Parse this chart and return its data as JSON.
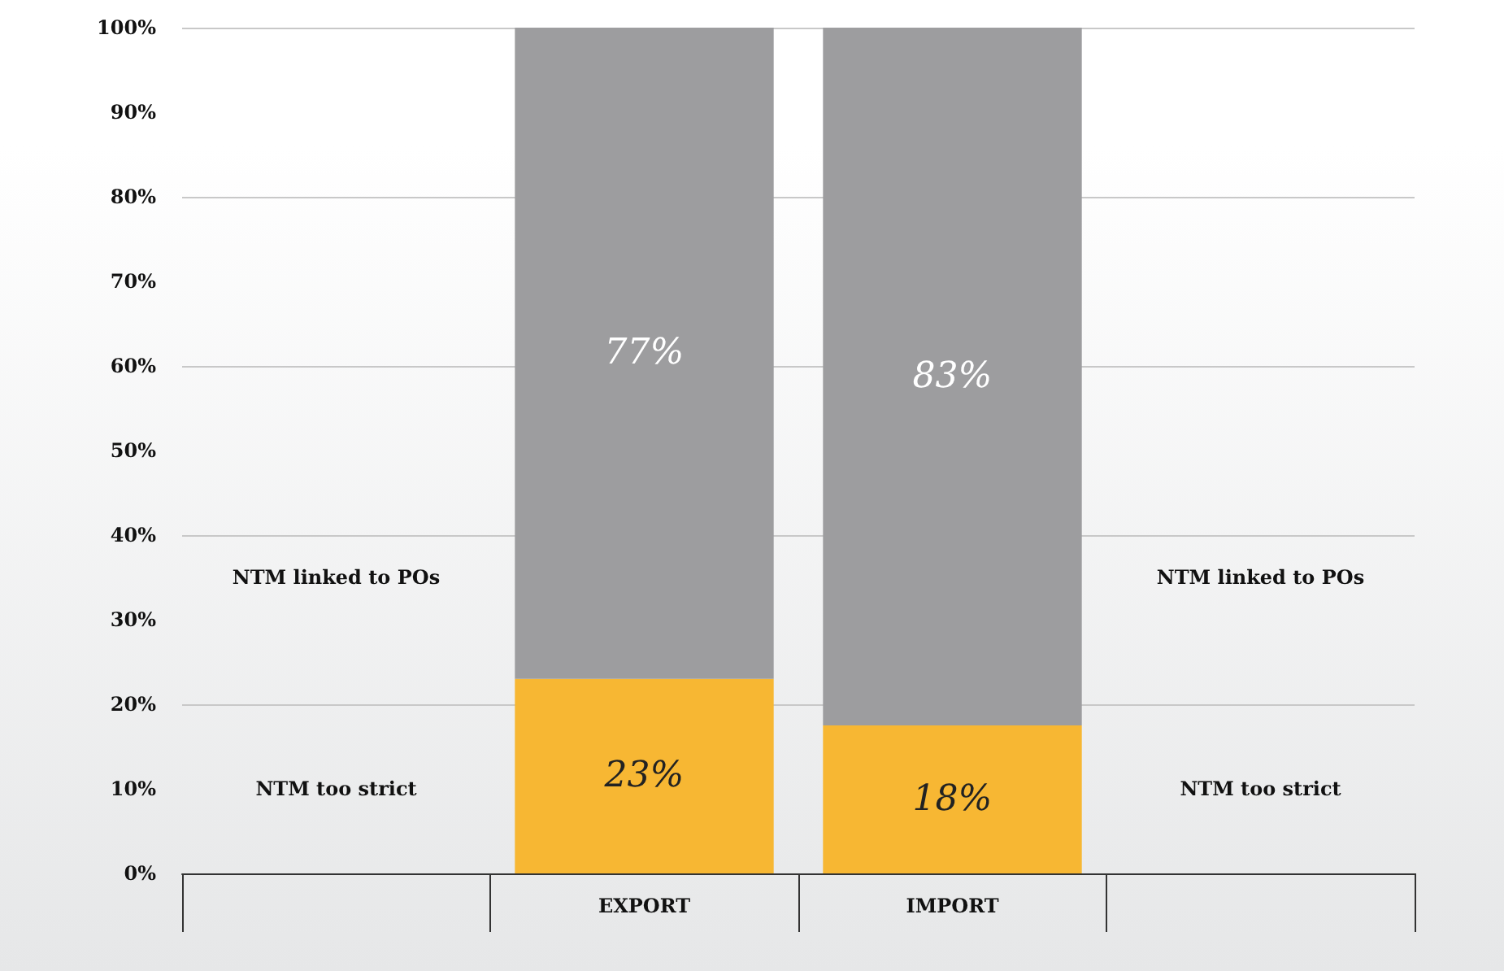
{
  "chart_data": {
    "type": "bar",
    "stacked": true,
    "categories": [
      null,
      "EXPORT",
      "IMPORT",
      null
    ],
    "series": [
      {
        "name": "NTM too strict",
        "color": "#f7b733",
        "values": [
          null,
          23,
          17.5,
          null
        ],
        "value_labels": [
          null,
          "23%",
          "18%",
          null
        ]
      },
      {
        "name": "NTM linked to POs",
        "color": "#9d9d9f",
        "values": [
          null,
          77,
          82.5,
          null
        ],
        "value_labels": [
          null,
          "77%",
          "83%",
          null
        ]
      }
    ],
    "ylim": [
      0,
      100
    ],
    "yticks": [
      {
        "value": 0,
        "label": "0%"
      },
      {
        "value": 10,
        "label": "10%"
      },
      {
        "value": 20,
        "label": "20%"
      },
      {
        "value": 30,
        "label": "30%"
      },
      {
        "value": 40,
        "label": "40%"
      },
      {
        "value": 50,
        "label": "50%"
      },
      {
        "value": 60,
        "label": "60%"
      },
      {
        "value": 70,
        "label": "70%"
      },
      {
        "value": 80,
        "label": "80%"
      },
      {
        "value": 90,
        "label": "90%"
      },
      {
        "value": 100,
        "label": "100%"
      }
    ],
    "grid": "y",
    "legend": false
  }
}
